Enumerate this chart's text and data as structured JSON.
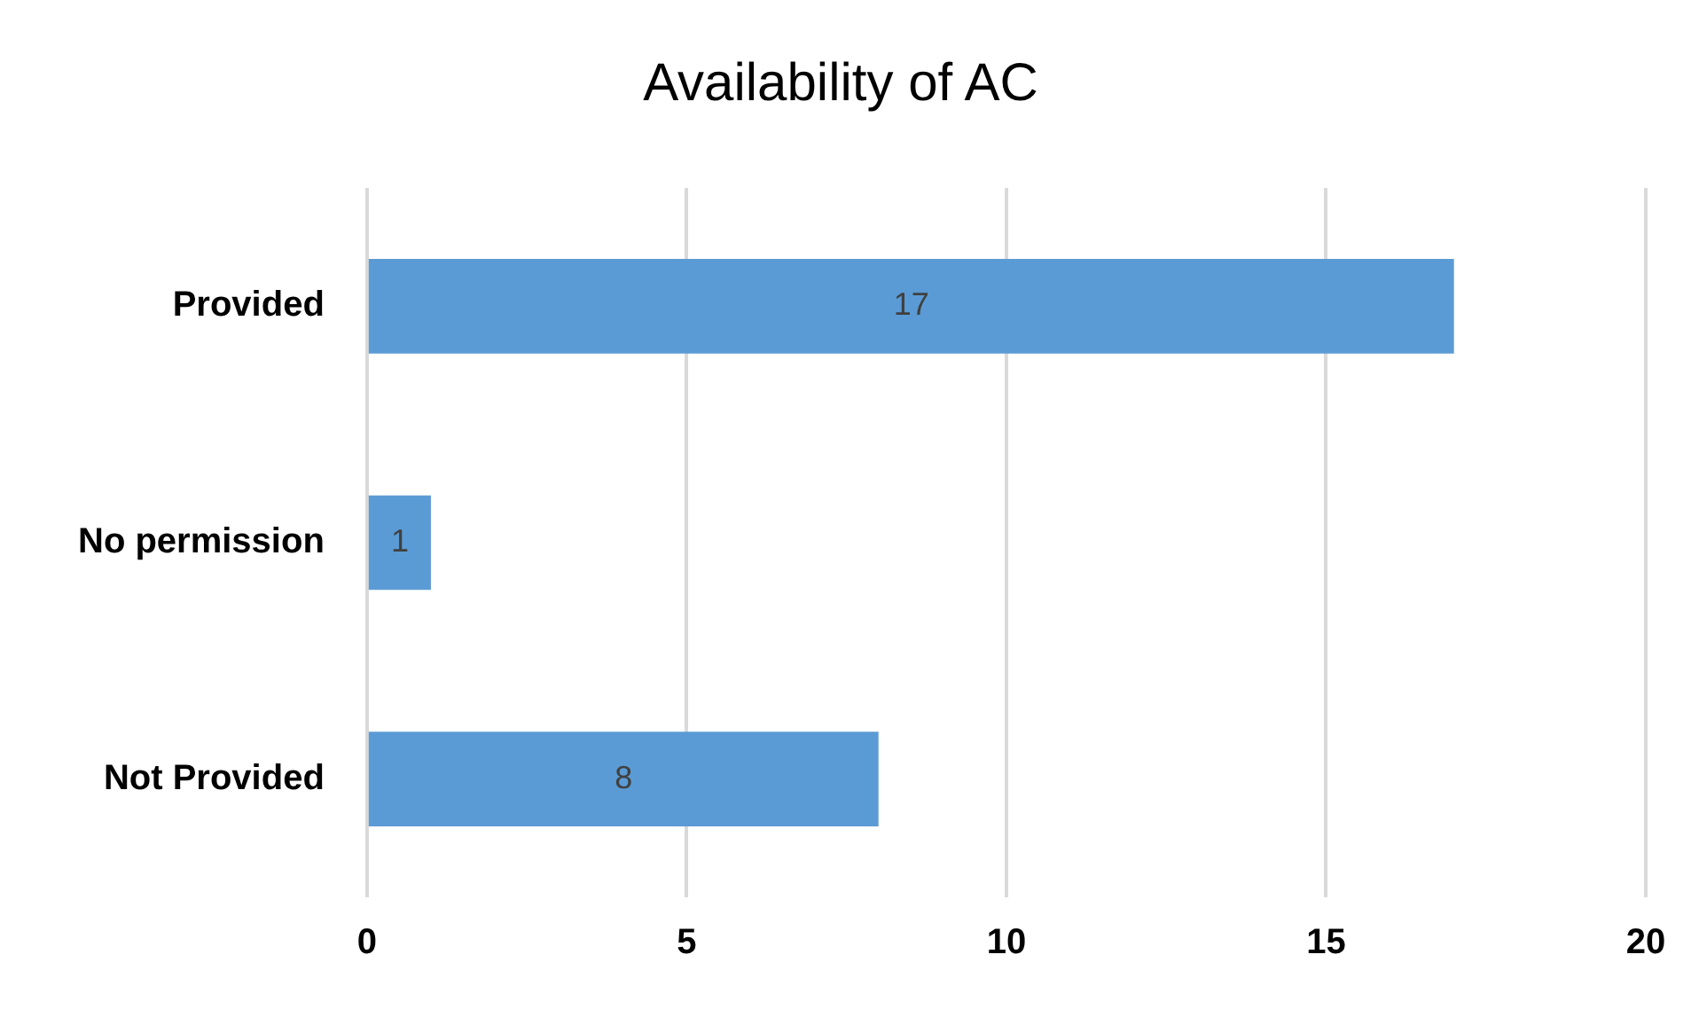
{
  "chart_data": {
    "type": "bar",
    "orientation": "horizontal",
    "title": "Availability of AC",
    "categories": [
      "Provided",
      "No permission",
      "Not Provided"
    ],
    "values": [
      17,
      1,
      8
    ],
    "color": "#5b9bd5",
    "xlim": [
      0,
      20
    ],
    "xticks": [
      0,
      5,
      10,
      15,
      20
    ],
    "grid": "x",
    "legend": false,
    "data_labels": true
  }
}
